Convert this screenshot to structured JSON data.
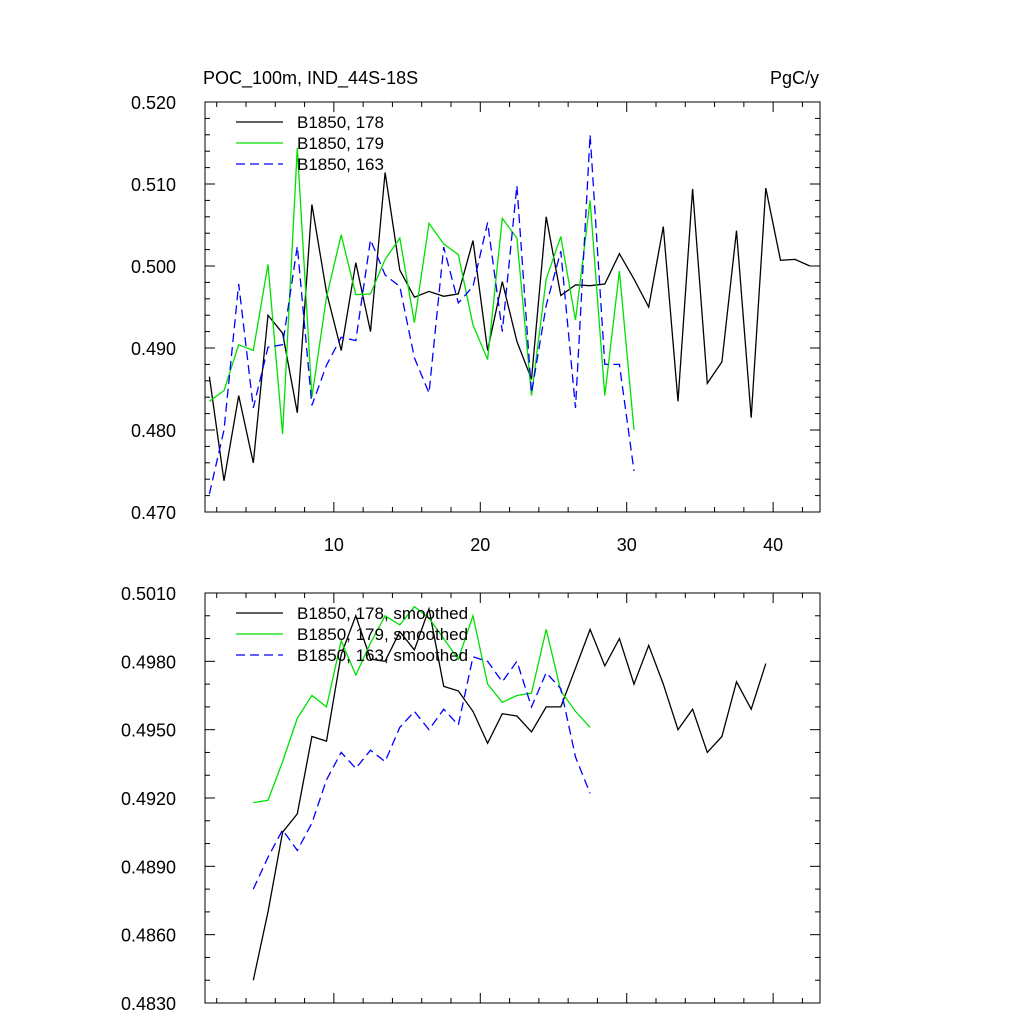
{
  "chart_data": [
    {
      "type": "line",
      "title": "POC_100m, IND_44S-18S",
      "units": "PgC/y",
      "xlim": [
        1.2,
        43.2
      ],
      "ylim": [
        0.47,
        0.52
      ],
      "xticks": [
        10,
        20,
        30,
        40
      ],
      "yticks": [
        0.47,
        0.48,
        0.49,
        0.5,
        0.51,
        0.52
      ],
      "ytick_labels": [
        "0.470",
        "0.480",
        "0.490",
        "0.500",
        "0.510",
        "0.520"
      ],
      "legend_position": "top-left",
      "series": [
        {
          "name": "B1850, 178",
          "color": "#000000",
          "dash": "solid",
          "x": [
            1.5,
            2.5,
            3.5,
            4.5,
            5.5,
            6.5,
            7.5,
            8.5,
            9.5,
            10.5,
            11.5,
            12.5,
            13.5,
            14.5,
            15.5,
            16.5,
            17.5,
            18.5,
            19.5,
            20.5,
            21.5,
            22.5,
            23.5,
            24.5,
            25.5,
            26.5,
            27.5,
            28.5,
            29.5,
            30.5,
            31.5,
            32.5,
            33.5,
            34.5,
            35.5,
            36.5,
            37.5,
            38.5,
            39.5,
            40.5,
            41.5,
            42.5
          ],
          "y": [
            0.4865,
            0.4738,
            0.4842,
            0.476,
            0.494,
            0.4918,
            0.4821,
            0.5075,
            0.4968,
            0.4897,
            0.5004,
            0.492,
            0.5114,
            0.4995,
            0.4962,
            0.4969,
            0.4963,
            0.4966,
            0.5031,
            0.4897,
            0.4981,
            0.4908,
            0.4862,
            0.506,
            0.4964,
            0.4977,
            0.4976,
            0.4978,
            0.5015,
            0.4984,
            0.495,
            0.5048,
            0.4835,
            0.5094,
            0.4857,
            0.4883,
            0.5043,
            0.4815,
            0.5095,
            0.5007,
            0.5008,
            0.5
          ]
        },
        {
          "name": "B1850, 179",
          "color": "#00e000",
          "dash": "solid",
          "x": [
            1.5,
            2.5,
            3.5,
            4.5,
            5.5,
            6.5,
            7.5,
            8.5,
            9.5,
            10.5,
            11.5,
            12.5,
            13.5,
            14.5,
            15.5,
            16.5,
            17.5,
            18.5,
            19.5,
            20.5,
            21.5,
            22.5,
            23.5,
            24.5,
            25.5,
            26.5,
            27.5,
            28.5,
            29.5,
            30.5
          ],
          "y": [
            0.4835,
            0.4848,
            0.4904,
            0.4897,
            0.5002,
            0.4795,
            0.5144,
            0.484,
            0.4962,
            0.5038,
            0.4965,
            0.4966,
            0.5008,
            0.5034,
            0.4931,
            0.5052,
            0.5027,
            0.5014,
            0.4928,
            0.4886,
            0.5058,
            0.5034,
            0.4842,
            0.4984,
            0.5036,
            0.4934,
            0.508,
            0.4842,
            0.4994,
            0.48
          ]
        },
        {
          "name": "B1850, 163",
          "color": "#0000ff",
          "dash": "dashed",
          "x": [
            1.5,
            2.5,
            3.5,
            4.5,
            5.5,
            6.5,
            7.5,
            8.5,
            9.5,
            10.5,
            11.5,
            12.5,
            13.5,
            14.5,
            15.5,
            16.5,
            17.5,
            18.5,
            19.5,
            20.5,
            21.5,
            22.5,
            23.5,
            24.5,
            25.5,
            26.5,
            27.5,
            28.5,
            29.5,
            30.5
          ],
          "y": [
            0.4722,
            0.48,
            0.4978,
            0.4827,
            0.4901,
            0.4904,
            0.5024,
            0.483,
            0.4879,
            0.4913,
            0.4909,
            0.5032,
            0.4989,
            0.4975,
            0.4888,
            0.4845,
            0.5023,
            0.4955,
            0.4975,
            0.5053,
            0.492,
            0.5098,
            0.4845,
            0.4952,
            0.5018,
            0.4827,
            0.516,
            0.488,
            0.488,
            0.475
          ]
        }
      ]
    },
    {
      "type": "line",
      "xlim": [
        1.2,
        43.2
      ],
      "ylim": [
        0.483,
        0.501
      ],
      "xticks": [
        10,
        20,
        30,
        40
      ],
      "yticks": [
        0.483,
        0.486,
        0.489,
        0.492,
        0.495,
        0.498,
        0.501
      ],
      "ytick_labels": [
        "0.4830",
        "0.4860",
        "0.4890",
        "0.4920",
        "0.4950",
        "0.4980",
        "0.5010"
      ],
      "legend_position": "top-left",
      "series": [
        {
          "name": "B1850, 178, smoothed",
          "color": "#000000",
          "dash": "solid",
          "x": [
            4.5,
            5.5,
            6.5,
            7.5,
            8.5,
            9.5,
            10.5,
            11.5,
            12.5,
            13.5,
            14.5,
            15.5,
            16.5,
            17.5,
            18.5,
            19.5,
            20.5,
            21.5,
            22.5,
            23.5,
            24.5,
            25.5,
            26.5,
            27.5,
            28.5,
            29.5,
            30.5,
            31.5,
            32.5,
            33.5,
            34.5,
            35.5,
            36.5,
            37.5,
            38.5,
            39.5
          ],
          "y": [
            0.484,
            0.487,
            0.4905,
            0.4913,
            0.4947,
            0.4945,
            0.4983,
            0.5,
            0.4981,
            0.498,
            0.4993,
            0.4985,
            0.5003,
            0.4969,
            0.4967,
            0.4958,
            0.4944,
            0.4957,
            0.4956,
            0.4949,
            0.496,
            0.496,
            0.4977,
            0.4994,
            0.4978,
            0.499,
            0.497,
            0.4987,
            0.497,
            0.495,
            0.4959,
            0.494,
            0.4947,
            0.4971,
            0.4959,
            0.4979
          ]
        },
        {
          "name": "B1850, 179, smoothed",
          "color": "#00e000",
          "dash": "solid",
          "x": [
            4.5,
            5.5,
            6.5,
            7.5,
            8.5,
            9.5,
            10.5,
            11.5,
            12.5,
            13.5,
            14.5,
            15.5,
            16.5,
            17.5,
            18.5,
            19.5,
            20.5,
            21.5,
            22.5,
            23.5,
            24.5,
            25.5,
            26.5,
            27.5
          ],
          "y": [
            0.4918,
            0.4919,
            0.4936,
            0.4955,
            0.4965,
            0.496,
            0.4989,
            0.4974,
            0.4988,
            0.5,
            0.4996,
            0.5004,
            0.4999,
            0.499,
            0.4981,
            0.5,
            0.497,
            0.4962,
            0.4965,
            0.4966,
            0.4994,
            0.4967,
            0.4958,
            0.4951
          ]
        },
        {
          "name": "B1850, 163, smoothed",
          "color": "#0000ff",
          "dash": "dashed",
          "x": [
            4.5,
            5.5,
            6.5,
            7.5,
            8.5,
            9.5,
            10.5,
            11.5,
            12.5,
            13.5,
            14.5,
            15.5,
            16.5,
            17.5,
            18.5,
            19.5,
            20.5,
            21.5,
            22.5,
            23.5,
            24.5,
            25.5,
            26.5,
            27.5
          ],
          "y": [
            0.488,
            0.4894,
            0.4906,
            0.4897,
            0.4909,
            0.4928,
            0.494,
            0.4933,
            0.4941,
            0.4936,
            0.4951,
            0.4958,
            0.495,
            0.4959,
            0.4952,
            0.4982,
            0.498,
            0.4971,
            0.498,
            0.496,
            0.4975,
            0.4968,
            0.4938,
            0.4922
          ]
        }
      ]
    }
  ]
}
